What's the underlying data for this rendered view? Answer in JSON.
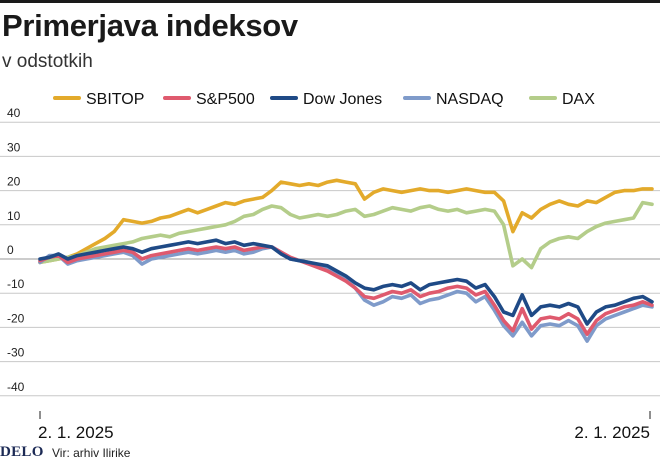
{
  "header": {
    "title": "Primerjava indeksov",
    "subtitle": "v odstotkih"
  },
  "footer": {
    "brand": "DELO",
    "source": "Vir: arhiv Ilirike"
  },
  "chart_data": {
    "type": "line",
    "title": "Primerjava indeksov",
    "subtitle": "v odstotkih",
    "xlabel": "",
    "ylabel": "",
    "x_tick_labels": [
      "2. 1. 2025",
      "2. 1. 2025"
    ],
    "y_ticks": [
      -40,
      -30,
      -20,
      -10,
      0,
      10,
      20,
      30,
      40
    ],
    "ylim": [
      -43,
      43
    ],
    "grid": true,
    "legend": "top",
    "series": [
      {
        "name": "SBITOP",
        "color": "#e3aa2b",
        "values": [
          -1,
          -0.5,
          0,
          0.5,
          1.5,
          3,
          4.5,
          6,
          8,
          11.5,
          11,
          10.5,
          11,
          12,
          12.5,
          13.5,
          14.5,
          13.5,
          14.5,
          15.5,
          16.5,
          16,
          17,
          17.5,
          18,
          20,
          22.5,
          22,
          21.5,
          22,
          21.5,
          22.5,
          23,
          22.5,
          22,
          17.5,
          19.5,
          20.5,
          20,
          19.5,
          20,
          20.5,
          20,
          20,
          19.5,
          20,
          20.5,
          20,
          19.5,
          19.5,
          17,
          8,
          13.5,
          12,
          14.5,
          16,
          17,
          16,
          15.5,
          17,
          16.5,
          18,
          19.5,
          20,
          20,
          20.5,
          20.5
        ]
      },
      {
        "name": "DAX",
        "color": "#b4cd8a",
        "values": [
          -1,
          -0.5,
          0,
          0.5,
          1,
          2,
          3,
          3.5,
          4,
          4.5,
          5,
          6,
          6.5,
          7,
          6.5,
          7.5,
          8,
          8.5,
          9,
          9.5,
          10,
          11,
          12.5,
          13,
          14.5,
          15.5,
          15,
          13,
          12,
          12.5,
          13,
          12.5,
          13,
          14,
          14.5,
          12.5,
          13,
          14,
          15,
          14.5,
          14,
          15,
          15.5,
          14.5,
          14,
          14.5,
          13.5,
          14,
          14.5,
          14,
          10,
          -2,
          0,
          -2.5,
          3,
          5,
          6,
          6.5,
          6,
          8,
          9.5,
          10.5,
          11,
          11.5,
          12,
          16.5,
          16
        ]
      },
      {
        "name": "NASDAQ",
        "color": "#7f9bca",
        "values": [
          -1,
          1,
          1,
          -1.5,
          -0.5,
          0,
          0.5,
          1,
          1.5,
          2,
          1,
          -1.5,
          0,
          0.5,
          1,
          1.5,
          2,
          1.5,
          2,
          2.5,
          2,
          2.5,
          1.5,
          2,
          3,
          3.5,
          2,
          0,
          -0.5,
          -1,
          -2,
          -3,
          -4.5,
          -6,
          -8.5,
          -12,
          -13.5,
          -12.5,
          -11,
          -11.5,
          -10.5,
          -13,
          -12,
          -11.5,
          -10.5,
          -9.5,
          -10,
          -12.5,
          -11,
          -15,
          -19.5,
          -22.5,
          -18.5,
          -22.5,
          -19.5,
          -19,
          -19.5,
          -18,
          -19.5,
          -24,
          -19.5,
          -17.5,
          -16.5,
          -15.5,
          -14.5,
          -13.5,
          -14
        ]
      },
      {
        "name": "S&P500",
        "color": "#df5a6e",
        "values": [
          -0.5,
          0.5,
          1,
          -1,
          0,
          0.5,
          1,
          1.5,
          2,
          2.5,
          2,
          0,
          1,
          1.5,
          2,
          2.5,
          3,
          2.5,
          3,
          3.5,
          3,
          3.5,
          2.5,
          3,
          3.5,
          3.5,
          2,
          0.5,
          -0.5,
          -1.5,
          -2.5,
          -3.5,
          -5,
          -6.5,
          -8.5,
          -11,
          -11.5,
          -10.5,
          -9.5,
          -10,
          -9,
          -11,
          -10,
          -9.5,
          -8.5,
          -8,
          -8.5,
          -10.5,
          -9.5,
          -13.5,
          -18,
          -21,
          -14.5,
          -20.5,
          -17.5,
          -17,
          -17.5,
          -16,
          -17.5,
          -22,
          -18,
          -16,
          -15,
          -14,
          -13.5,
          -12.5,
          -13.5
        ]
      },
      {
        "name": "Dow Jones",
        "color": "#1f4a86",
        "values": [
          0,
          0.5,
          1.5,
          0,
          1,
          1.5,
          2,
          2.5,
          3,
          3.5,
          3,
          2,
          3,
          3.5,
          4,
          4.5,
          5,
          4.5,
          5,
          5.5,
          4.5,
          5,
          4,
          4.5,
          4,
          3.5,
          1.5,
          0,
          -0.5,
          -1,
          -1.5,
          -2,
          -3.5,
          -5,
          -7,
          -8.5,
          -9,
          -8,
          -7.5,
          -8,
          -7,
          -9,
          -7.5,
          -7,
          -6.5,
          -6,
          -6.5,
          -8.5,
          -7.5,
          -11,
          -15.5,
          -16.5,
          -10.5,
          -16.5,
          -14,
          -13.5,
          -14,
          -13,
          -14,
          -19,
          -15.5,
          -14,
          -13.5,
          -12.5,
          -11.5,
          -11,
          -12.5
        ]
      }
    ]
  }
}
